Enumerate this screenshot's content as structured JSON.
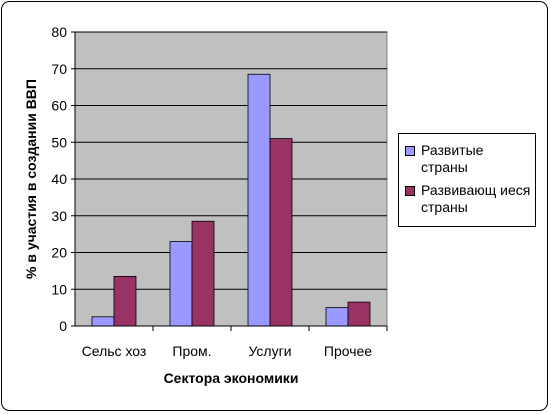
{
  "chart_data": {
    "type": "bar",
    "categories": [
      "Сельс хоз",
      "Пром.",
      "Услуги",
      "Прочее"
    ],
    "series": [
      {
        "name": "Развитые страны",
        "color": "#9999ff",
        "values": [
          2.5,
          23,
          68.5,
          5
        ]
      },
      {
        "name": "Развивающ иеся страны",
        "color": "#993366",
        "values": [
          13.5,
          28.5,
          51,
          6.5
        ]
      }
    ],
    "x_label": "Сектора экономики",
    "y_label": "% в участия в создании ВВП",
    "ylim": [
      0,
      80
    ],
    "yticks": [
      0,
      10,
      20,
      30,
      40,
      50,
      60,
      70,
      80
    ],
    "grid": true,
    "legend": "right"
  }
}
